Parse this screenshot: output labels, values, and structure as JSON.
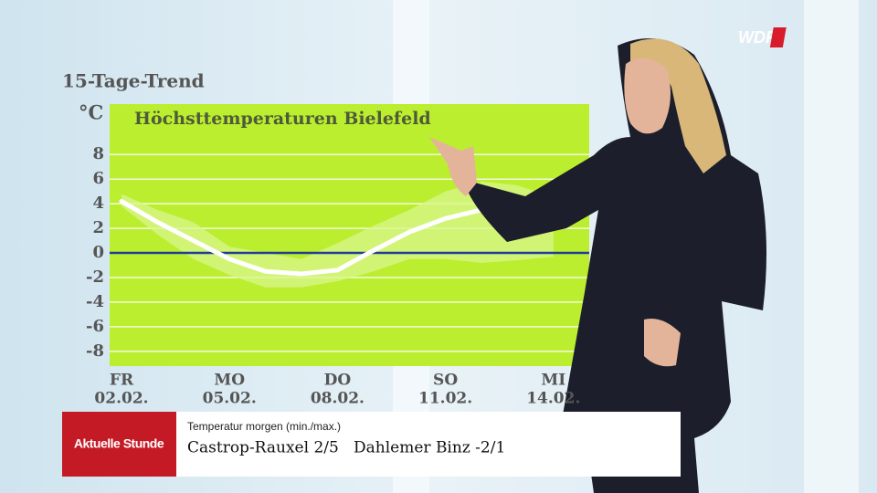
{
  "header": {
    "title": "15-Tage-Trend"
  },
  "logo": "WDR",
  "chart_data": {
    "type": "line",
    "title": "Höchsttemperaturen Bielefeld",
    "y_unit": "°C",
    "categories": [
      "02.02.",
      null,
      null,
      "05.02.",
      null,
      null,
      "08.02.",
      null,
      null,
      "11.02.",
      null,
      null,
      "14.02.",
      null,
      null
    ],
    "weekday_labels": [
      "FR",
      null,
      null,
      "MO",
      null,
      null,
      "DO",
      null,
      null,
      "SO",
      null,
      null,
      "MI",
      null,
      null
    ],
    "series": [
      {
        "color": "#ffffff",
        "values": [
          4.2,
          2.5,
          1,
          -0.5,
          -1.5,
          -1.7,
          -1.4,
          0.2,
          1.7,
          2.8,
          3.5,
          null,
          null,
          null,
          null
        ]
      }
    ],
    "range": {
      "color": "#d9f68e",
      "upper": [
        4.8,
        3.5,
        2.5,
        0.5,
        0,
        -0.5,
        0.8,
        2.2,
        3.5,
        5,
        5.8,
        5.5,
        4.5,
        null,
        null
      ],
      "lower": [
        3.8,
        1.5,
        -0.5,
        -1.8,
        -2.8,
        -2.8,
        -2.3,
        -1.5,
        -0.5,
        -0.5,
        -0.8,
        -0.6,
        -0.3,
        null,
        null
      ]
    },
    "zero_line_color": "#1f3c9a",
    "ylim": [
      -9.2,
      12.1
    ],
    "yticks": [
      -8,
      -6,
      -4,
      -2,
      0,
      2,
      4,
      6,
      8
    ],
    "grid": true
  },
  "lower_third": {
    "label": "Aktuelle Stunde",
    "subtitle": "Temperatur morgen (min./max.)",
    "text": "Castrop-Rauxel 2/5   Dahlemer Binz -2/1"
  }
}
